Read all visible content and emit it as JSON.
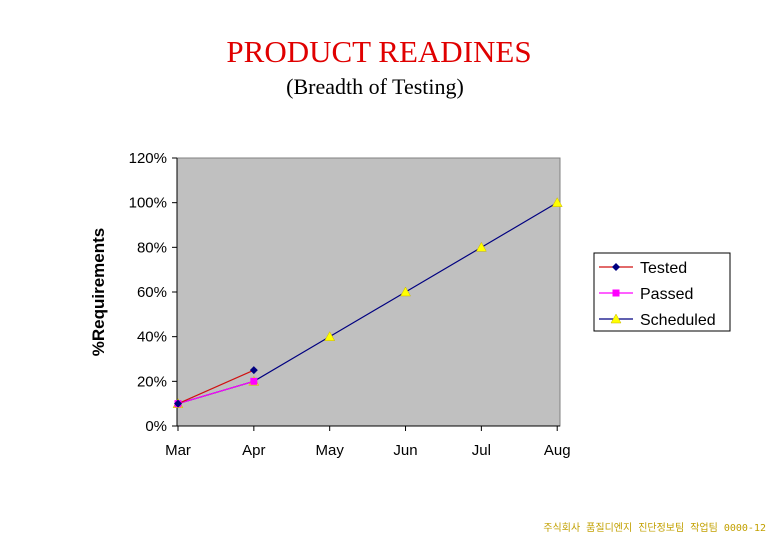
{
  "header": {
    "title": "PRODUCT READINES",
    "subtitle": "(Breadth of Testing)"
  },
  "footer": {
    "text": "주식회사 품질디엔지 진단정보팀 작업팀 0000-12"
  },
  "chart_data": {
    "type": "line",
    "categories": [
      "Mar",
      "Apr",
      "May",
      "Jun",
      "Jul",
      "Aug"
    ],
    "ylabel": "%Requirements",
    "yticks": [
      "0%",
      "20%",
      "40%",
      "60%",
      "80%",
      "100%",
      "120%"
    ],
    "ylim": [
      0,
      120
    ],
    "grid": false,
    "legend_position": "right",
    "series": [
      {
        "name": "Tested",
        "values": [
          10,
          25,
          null,
          null,
          null,
          null
        ],
        "line_color": "#d01010",
        "marker_color": "#000080",
        "marker": "diamond"
      },
      {
        "name": "Passed",
        "values": [
          10,
          20,
          null,
          null,
          null,
          null
        ],
        "line_color": "#ff00ff",
        "marker_color": "#ff00ff",
        "marker": "square"
      },
      {
        "name": "Scheduled",
        "values": [
          10,
          20,
          40,
          60,
          80,
          100
        ],
        "line_color": "#000080",
        "marker_color": "#ffff00",
        "marker": "triangle"
      }
    ],
    "plot_background": "#c0c0c0"
  }
}
